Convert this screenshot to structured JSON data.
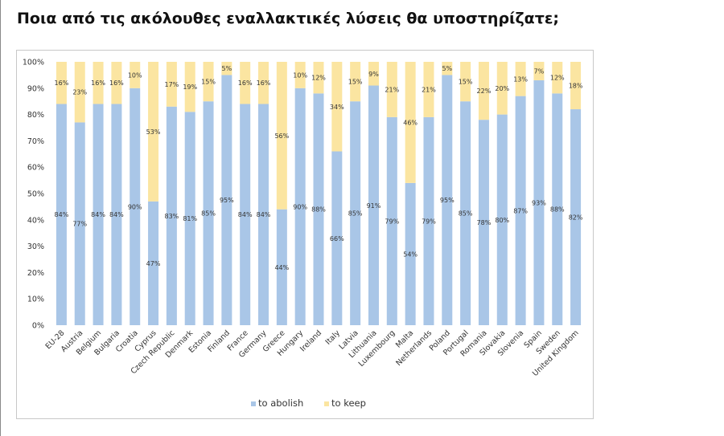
{
  "question": "Ποια από τις ακόλουθες εναλλακτικές λύσεις θα υποστηρίζατε;",
  "colors": {
    "abolish": "#a9c6e7",
    "keep": "#fbe5a1"
  },
  "chart_data": {
    "type": "bar",
    "stacked": true,
    "categories": [
      "EU-28",
      "Austria",
      "Belgium",
      "Bulgaria",
      "Croatia",
      "Cyprus",
      "Czech Republic",
      "Denmark",
      "Estonia",
      "Finland",
      "France",
      "Germany",
      "Greece",
      "Hungary",
      "Ireland",
      "Italy",
      "Latvia",
      "Lithuania",
      "Luxembourg",
      "Malta",
      "Netherlands",
      "Poland",
      "Portugal",
      "Romania",
      "Slovakia",
      "Slovenia",
      "Spain",
      "Sweden",
      "United Kingdom"
    ],
    "series": [
      {
        "name": "to abolish",
        "values": [
          84,
          77,
          84,
          84,
          90,
          47,
          83,
          81,
          85,
          95,
          84,
          84,
          44,
          90,
          88,
          66,
          85,
          91,
          79,
          54,
          79,
          95,
          85,
          78,
          80,
          87,
          93,
          88,
          82
        ]
      },
      {
        "name": "to keep",
        "values": [
          16,
          23,
          16,
          16,
          10,
          53,
          17,
          19,
          15,
          5,
          16,
          16,
          56,
          10,
          12,
          34,
          15,
          9,
          21,
          46,
          21,
          5,
          15,
          22,
          20,
          13,
          7,
          12,
          18
        ]
      }
    ],
    "ylim": [
      0,
      100
    ],
    "yticks": [
      "0%",
      "10%",
      "20%",
      "30%",
      "40%",
      "50%",
      "60%",
      "70%",
      "80%",
      "90%",
      "100%"
    ],
    "legend": "bottom",
    "grid": false
  }
}
